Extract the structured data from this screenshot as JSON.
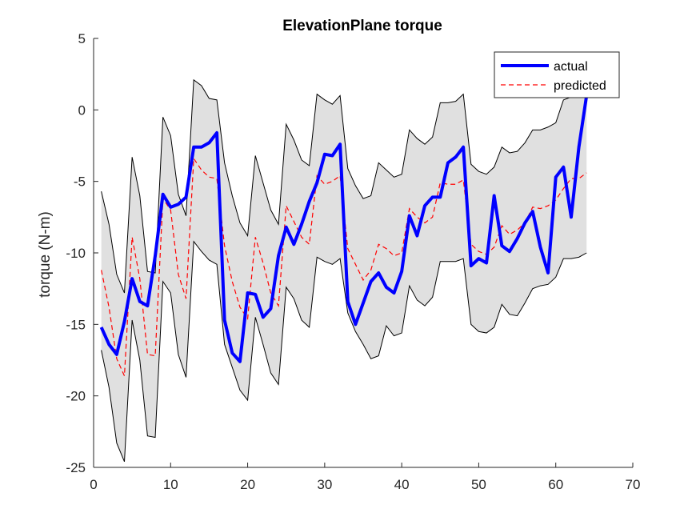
{
  "chart_data": {
    "type": "line",
    "title": "ElevationPlane torque",
    "xlabel": "",
    "ylabel": "torque (N-m)",
    "xlim": [
      0,
      70
    ],
    "ylim": [
      -25,
      5
    ],
    "xticks": [
      "0",
      "10",
      "20",
      "30",
      "40",
      "50",
      "60",
      "70"
    ],
    "yticks": [
      "5",
      "0",
      "-5",
      "-10",
      "-15",
      "-20",
      "-25"
    ],
    "legend_position": "top-right",
    "x": [
      1,
      2,
      3,
      4,
      5,
      6,
      7,
      8,
      9,
      10,
      11,
      12,
      13,
      14,
      15,
      16,
      17,
      18,
      19,
      20,
      21,
      22,
      23,
      24,
      25,
      26,
      27,
      28,
      29,
      30,
      31,
      32,
      33,
      34,
      35,
      36,
      37,
      38,
      39,
      40,
      41,
      42,
      43,
      44,
      45,
      46,
      47,
      48,
      49,
      50,
      51,
      52,
      53,
      54,
      55,
      56,
      57,
      58,
      59,
      60,
      61,
      62,
      63,
      64
    ],
    "series": [
      {
        "name": "actual",
        "color": "#0000ff",
        "style": "solid",
        "values": [
          -15.2,
          -16.4,
          -17.1,
          -14.8,
          -11.8,
          -13.4,
          -13.7,
          -10.2,
          -5.9,
          -6.8,
          -6.6,
          -6.1,
          -2.6,
          -2.6,
          -2.3,
          -1.6,
          -14.7,
          -17.0,
          -17.6,
          -12.8,
          -12.9,
          -14.5,
          -13.9,
          -10.2,
          -8.2,
          -9.4,
          -8.0,
          -6.4,
          -5.1,
          -3.1,
          -3.2,
          -2.4,
          -13.4,
          -15.0,
          -13.5,
          -12.0,
          -11.4,
          -12.4,
          -12.8,
          -11.3,
          -7.4,
          -8.8,
          -6.7,
          -6.1,
          -6.1,
          -3.7,
          -3.3,
          -2.6,
          -10.9,
          -10.4,
          -10.7,
          -6.0,
          -9.5,
          -9.9,
          -9.0,
          -7.9,
          -7.1,
          -9.6,
          -11.4,
          -4.7,
          -4.0,
          -7.5,
          -2.6,
          1.0
        ]
      },
      {
        "name": "predicted",
        "color": "#ff0000",
        "style": "dashed",
        "values": [
          -11.2,
          -13.8,
          -17.4,
          -18.6,
          -8.9,
          -11.8,
          -17.1,
          -17.2,
          -6.2,
          -7.0,
          -11.5,
          -13.2,
          -3.4,
          -4.2,
          -4.7,
          -4.8,
          -9.5,
          -12.0,
          -13.8,
          -14.6,
          -8.9,
          -10.7,
          -12.8,
          -13.7,
          -6.7,
          -7.8,
          -8.9,
          -9.4,
          -4.6,
          -5.2,
          -5.0,
          -4.6,
          -9.7,
          -10.8,
          -11.9,
          -11.2,
          -9.4,
          -9.7,
          -10.2,
          -10.0,
          -6.9,
          -7.5,
          -7.9,
          -7.5,
          -5.1,
          -5.2,
          -5.2,
          -4.9,
          -9.4,
          -9.9,
          -10.1,
          -9.6,
          -8.1,
          -8.7,
          -8.4,
          -7.9,
          -6.8,
          -6.9,
          -6.7,
          -6.3,
          -5.5,
          -4.8,
          -4.8,
          -4.4
        ]
      },
      {
        "name": "",
        "color": "#000000",
        "style": "band-upper",
        "values": [
          -5.7,
          -8.0,
          -11.5,
          -12.8,
          -3.3,
          -6.0,
          -11.3,
          -11.4,
          -0.5,
          -1.8,
          -5.9,
          -7.4,
          2.1,
          1.7,
          0.8,
          0.7,
          -3.7,
          -6.0,
          -7.9,
          -8.8,
          -3.2,
          -5.1,
          -7.0,
          -8.0,
          -1.0,
          -2.1,
          -3.5,
          -3.9,
          1.1,
          0.7,
          0.4,
          1.0,
          -4.1,
          -5.3,
          -6.2,
          -6.0,
          -3.7,
          -4.2,
          -4.7,
          -4.5,
          -1.4,
          -2.0,
          -2.4,
          -1.9,
          0.5,
          0.5,
          0.6,
          1.1,
          -3.8,
          -4.3,
          -4.5,
          -4.0,
          -2.6,
          -3.0,
          -2.9,
          -2.3,
          -1.4,
          -1.4,
          -1.2,
          -0.9,
          0.7,
          0.9,
          1.0,
          1.3
        ]
      },
      {
        "name": "",
        "color": "#000000",
        "style": "band-lower",
        "values": [
          -16.8,
          -19.4,
          -23.3,
          -24.6,
          -14.7,
          -17.5,
          -22.8,
          -22.9,
          -12.0,
          -12.8,
          -17.1,
          -18.7,
          -9.2,
          -9.9,
          -10.5,
          -10.8,
          -16.4,
          -18.0,
          -19.6,
          -20.3,
          -14.5,
          -16.4,
          -18.4,
          -19.2,
          -12.4,
          -13.2,
          -14.7,
          -15.2,
          -10.3,
          -10.6,
          -10.8,
          -10.4,
          -14.2,
          -15.5,
          -16.4,
          -17.4,
          -17.2,
          -15.1,
          -15.8,
          -15.6,
          -12.3,
          -13.3,
          -13.7,
          -13.1,
          -10.6,
          -10.6,
          -10.6,
          -10.4,
          -15.0,
          -15.5,
          -15.6,
          -15.2,
          -13.6,
          -14.3,
          -14.4,
          -13.5,
          -12.5,
          -12.3,
          -12.2,
          -11.7,
          -10.4,
          -10.4,
          -10.3,
          -10.0
        ]
      }
    ]
  }
}
